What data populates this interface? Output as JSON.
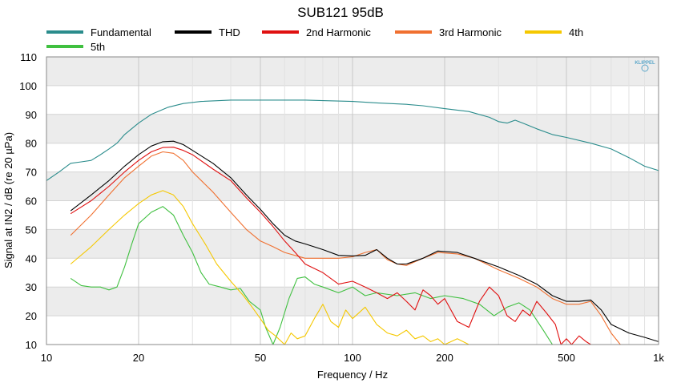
{
  "chart_data": {
    "type": "line",
    "title": "SUB121 95dB",
    "xlabel": "Frequency / Hz",
    "ylabel": "Signal at IN2 / dB (re 20 µPa)",
    "x_scale": "log",
    "xlim": [
      10,
      1000
    ],
    "ylim": [
      10,
      110
    ],
    "x_ticks": [
      10,
      20,
      50,
      100,
      200,
      500,
      1000
    ],
    "x_tick_labels": [
      "10",
      "20",
      "50",
      "100",
      "200",
      "500",
      "1k"
    ],
    "y_ticks": [
      10,
      20,
      30,
      40,
      50,
      60,
      70,
      80,
      90,
      100,
      110
    ],
    "y_tick_labels": [
      "10",
      "20",
      "30",
      "40",
      "50",
      "60",
      "70",
      "80",
      "90",
      "100",
      "110"
    ],
    "grid": true,
    "legend_position": "top",
    "watermark": "KLIPPEL",
    "series": [
      {
        "name": "Fundamental",
        "color": "#2a8c8c",
        "points": [
          [
            10,
            67
          ],
          [
            11,
            70
          ],
          [
            12,
            73
          ],
          [
            13,
            73.5
          ],
          [
            14,
            74
          ],
          [
            15,
            76
          ],
          [
            16,
            78
          ],
          [
            17,
            80
          ],
          [
            18,
            83
          ],
          [
            20,
            87
          ],
          [
            22,
            90
          ],
          [
            25,
            92.5
          ],
          [
            28,
            93.8
          ],
          [
            32,
            94.5
          ],
          [
            40,
            95
          ],
          [
            50,
            95
          ],
          [
            60,
            95
          ],
          [
            70,
            95
          ],
          [
            80,
            94.8
          ],
          [
            100,
            94.5
          ],
          [
            120,
            94
          ],
          [
            150,
            93.5
          ],
          [
            170,
            93
          ],
          [
            200,
            92
          ],
          [
            240,
            91
          ],
          [
            280,
            89
          ],
          [
            300,
            87.5
          ],
          [
            320,
            87
          ],
          [
            340,
            88
          ],
          [
            360,
            87
          ],
          [
            400,
            85
          ],
          [
            450,
            83
          ],
          [
            500,
            82
          ],
          [
            600,
            80
          ],
          [
            700,
            78
          ],
          [
            800,
            75
          ],
          [
            900,
            72
          ],
          [
            1000,
            70.5
          ]
        ]
      },
      {
        "name": "THD",
        "color": "#000000",
        "points": [
          [
            12,
            56.5
          ],
          [
            14,
            62
          ],
          [
            16,
            67
          ],
          [
            18,
            72
          ],
          [
            20,
            76
          ],
          [
            22,
            79
          ],
          [
            24,
            80.5
          ],
          [
            26,
            80.7
          ],
          [
            28,
            79.5
          ],
          [
            30,
            77.5
          ],
          [
            35,
            73
          ],
          [
            40,
            68
          ],
          [
            45,
            62
          ],
          [
            50,
            57
          ],
          [
            55,
            52
          ],
          [
            60,
            48
          ],
          [
            65,
            46
          ],
          [
            70,
            45
          ],
          [
            80,
            43
          ],
          [
            90,
            41
          ],
          [
            100,
            40.8
          ],
          [
            110,
            41
          ],
          [
            120,
            43
          ],
          [
            130,
            40
          ],
          [
            140,
            38
          ],
          [
            150,
            38
          ],
          [
            170,
            40
          ],
          [
            190,
            42.5
          ],
          [
            220,
            42
          ],
          [
            250,
            40
          ],
          [
            300,
            37
          ],
          [
            350,
            34
          ],
          [
            400,
            31
          ],
          [
            450,
            27
          ],
          [
            500,
            25
          ],
          [
            550,
            25
          ],
          [
            600,
            25.5
          ],
          [
            650,
            22
          ],
          [
            700,
            17
          ],
          [
            800,
            14
          ],
          [
            900,
            12.5
          ],
          [
            1000,
            11
          ]
        ]
      },
      {
        "name": "2nd Harmonic",
        "color": "#e01010",
        "points": [
          [
            12,
            55.5
          ],
          [
            14,
            60
          ],
          [
            16,
            65
          ],
          [
            18,
            70
          ],
          [
            20,
            74
          ],
          [
            22,
            77
          ],
          [
            24,
            78.5
          ],
          [
            26,
            78.6
          ],
          [
            28,
            77.5
          ],
          [
            30,
            76
          ],
          [
            35,
            71
          ],
          [
            40,
            67
          ],
          [
            45,
            61
          ],
          [
            50,
            56
          ],
          [
            55,
            51
          ],
          [
            60,
            46
          ],
          [
            65,
            42
          ],
          [
            70,
            38
          ],
          [
            80,
            35
          ],
          [
            90,
            31
          ],
          [
            100,
            32
          ],
          [
            110,
            30
          ],
          [
            120,
            28
          ],
          [
            130,
            26
          ],
          [
            140,
            28
          ],
          [
            150,
            25
          ],
          [
            160,
            22
          ],
          [
            170,
            29
          ],
          [
            180,
            27
          ],
          [
            190,
            24
          ],
          [
            200,
            26
          ],
          [
            220,
            18
          ],
          [
            240,
            16
          ],
          [
            260,
            25
          ],
          [
            280,
            30
          ],
          [
            300,
            27
          ],
          [
            320,
            20
          ],
          [
            340,
            18
          ],
          [
            360,
            22
          ],
          [
            380,
            20
          ],
          [
            400,
            25
          ],
          [
            430,
            21
          ],
          [
            460,
            17
          ],
          [
            480,
            10
          ],
          [
            500,
            12
          ],
          [
            520,
            10
          ],
          [
            550,
            13
          ],
          [
            580,
            11
          ],
          [
            600,
            10
          ]
        ]
      },
      {
        "name": "3rd Harmonic",
        "color": "#f07030",
        "points": [
          [
            12,
            48
          ],
          [
            14,
            55
          ],
          [
            16,
            62
          ],
          [
            18,
            68
          ],
          [
            20,
            72
          ],
          [
            22,
            75.5
          ],
          [
            24,
            77
          ],
          [
            26,
            76.5
          ],
          [
            28,
            74
          ],
          [
            30,
            70
          ],
          [
            35,
            63
          ],
          [
            40,
            56
          ],
          [
            45,
            50
          ],
          [
            50,
            46
          ],
          [
            55,
            44
          ],
          [
            60,
            42
          ],
          [
            70,
            40
          ],
          [
            80,
            40
          ],
          [
            90,
            40
          ],
          [
            100,
            40.5
          ],
          [
            110,
            42
          ],
          [
            120,
            43
          ],
          [
            130,
            39.5
          ],
          [
            140,
            38
          ],
          [
            150,
            37.5
          ],
          [
            170,
            40
          ],
          [
            190,
            42
          ],
          [
            220,
            41.5
          ],
          [
            250,
            40
          ],
          [
            300,
            36
          ],
          [
            350,
            33
          ],
          [
            400,
            30
          ],
          [
            450,
            26
          ],
          [
            500,
            24
          ],
          [
            550,
            24
          ],
          [
            600,
            25
          ],
          [
            650,
            20
          ],
          [
            700,
            14
          ],
          [
            750,
            10
          ]
        ]
      },
      {
        "name": "4th",
        "color": "#f5c800",
        "points": [
          [
            12,
            38
          ],
          [
            14,
            44
          ],
          [
            16,
            50
          ],
          [
            18,
            55
          ],
          [
            20,
            59
          ],
          [
            22,
            62
          ],
          [
            24,
            63.5
          ],
          [
            26,
            62
          ],
          [
            28,
            58
          ],
          [
            30,
            52
          ],
          [
            33,
            45
          ],
          [
            36,
            38
          ],
          [
            40,
            32
          ],
          [
            44,
            27
          ],
          [
            47,
            23
          ],
          [
            50,
            19
          ],
          [
            53,
            15
          ],
          [
            56,
            13
          ],
          [
            60,
            10
          ],
          [
            63,
            14
          ],
          [
            66,
            12
          ],
          [
            70,
            13
          ],
          [
            75,
            19
          ],
          [
            80,
            24
          ],
          [
            85,
            18
          ],
          [
            90,
            16
          ],
          [
            95,
            22
          ],
          [
            100,
            19
          ],
          [
            110,
            23
          ],
          [
            120,
            17
          ],
          [
            130,
            14
          ],
          [
            140,
            13
          ],
          [
            150,
            15
          ],
          [
            160,
            12
          ],
          [
            170,
            13
          ],
          [
            180,
            11
          ],
          [
            190,
            12
          ],
          [
            200,
            10
          ],
          [
            220,
            12
          ],
          [
            240,
            10
          ]
        ]
      },
      {
        "name": "5th",
        "color": "#40c040",
        "points": [
          [
            12,
            33
          ],
          [
            13,
            30.5
          ],
          [
            14,
            30
          ],
          [
            15,
            30
          ],
          [
            16,
            29
          ],
          [
            17,
            30
          ],
          [
            18,
            37
          ],
          [
            19,
            45
          ],
          [
            20,
            52
          ],
          [
            22,
            56
          ],
          [
            24,
            58
          ],
          [
            26,
            55
          ],
          [
            28,
            48
          ],
          [
            30,
            42
          ],
          [
            32,
            35
          ],
          [
            34,
            31
          ],
          [
            37,
            30
          ],
          [
            40,
            29
          ],
          [
            43,
            29.5
          ],
          [
            46,
            25
          ],
          [
            50,
            22
          ],
          [
            52,
            16
          ],
          [
            55,
            10
          ],
          [
            58,
            16
          ],
          [
            62,
            26
          ],
          [
            66,
            33
          ],
          [
            70,
            33.5
          ],
          [
            75,
            31
          ],
          [
            80,
            30
          ],
          [
            90,
            28
          ],
          [
            100,
            30
          ],
          [
            110,
            27
          ],
          [
            120,
            28
          ],
          [
            140,
            27
          ],
          [
            160,
            28
          ],
          [
            180,
            26
          ],
          [
            200,
            27
          ],
          [
            230,
            26
          ],
          [
            260,
            24
          ],
          [
            290,
            20
          ],
          [
            320,
            23
          ],
          [
            350,
            24.5
          ],
          [
            380,
            22
          ],
          [
            420,
            15
          ],
          [
            450,
            10
          ]
        ]
      }
    ]
  }
}
